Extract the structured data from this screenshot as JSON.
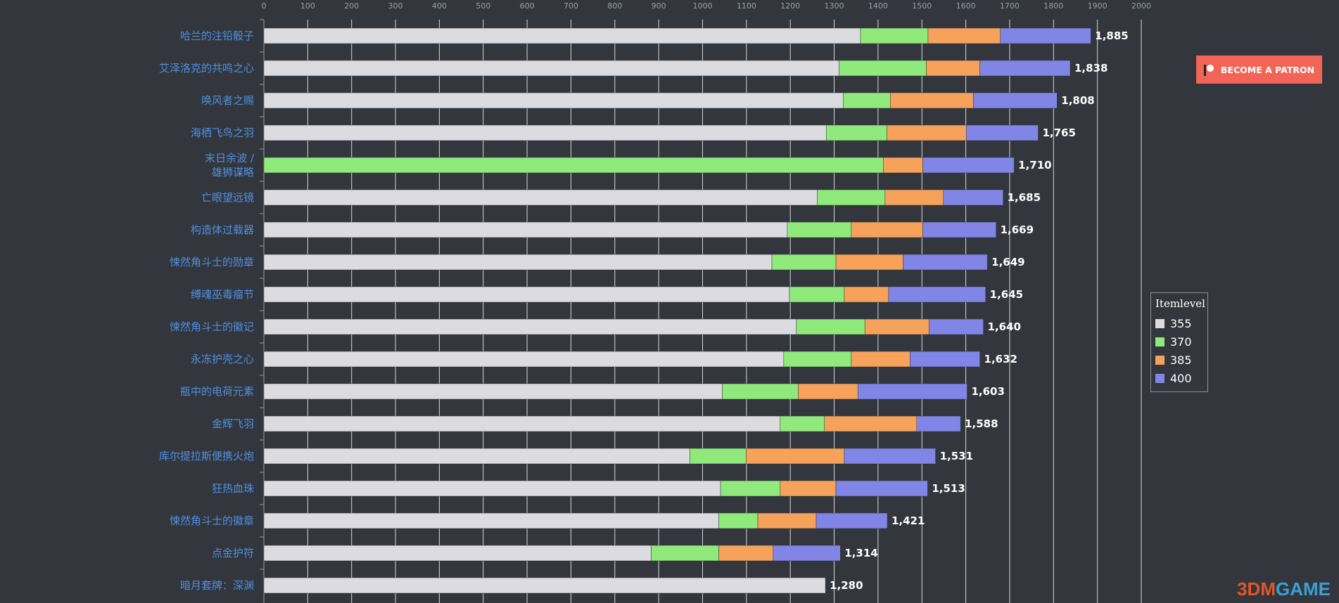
{
  "chart_data": {
    "type": "bar",
    "orientation": "horizontal",
    "stacked": true,
    "title": "",
    "xlabel": "",
    "ylabel": "",
    "xlim": [
      0,
      2000
    ],
    "xticks": [
      "0",
      "100",
      "200",
      "300",
      "400",
      "500",
      "600",
      "700",
      "800",
      "900",
      "1000",
      "1100",
      "1200",
      "1300",
      "1400",
      "1500",
      "1600",
      "1700",
      "1800",
      "1900",
      "2000"
    ],
    "grid": true,
    "legend_title": "Itemlevel",
    "legend_position": "right",
    "categories": [
      "哈兰的注铅骰子",
      "艾泽洛克的共鸣之心",
      "唤风者之赐",
      "海栖飞鸟之羽",
      "末日余波 / 雄狮谋略",
      "亡眼望远镜",
      "构造体过载器",
      "悚然角斗士的勋章",
      "缚魂巫毒瘤节",
      "悚然角斗士的徽记",
      "永冻护壳之心",
      "瓶中的电荷元素",
      "金辉飞羽",
      "库尔提拉斯便携火炮",
      "狂热血珠",
      "悚然角斗士的徽章",
      "点金护符",
      "暗月套牌：深渊"
    ],
    "category_lines": [
      [
        "哈兰的注铅骰子"
      ],
      [
        "艾泽洛克的共鸣之心"
      ],
      [
        "唤风者之赐"
      ],
      [
        "海栖飞鸟之羽"
      ],
      [
        "末日余波 /",
        "雄狮谋略"
      ],
      [
        "亡眼望远镜"
      ],
      [
        "构造体过载器"
      ],
      [
        "悚然角斗士的勋章"
      ],
      [
        "缚魂巫毒瘤节"
      ],
      [
        "悚然角斗士的徽记"
      ],
      [
        "永冻护壳之心"
      ],
      [
        "瓶中的电荷元素"
      ],
      [
        "金辉飞羽"
      ],
      [
        "库尔提拉斯便携火炮"
      ],
      [
        "狂热血珠"
      ],
      [
        "悚然角斗士的徽章"
      ],
      [
        "点金护符"
      ],
      [
        "暗月套牌：深渊"
      ]
    ],
    "series": [
      {
        "name": "355",
        "color": "#dcdbe0",
        "values": [
          1360,
          1311,
          1321,
          1282,
          0,
          1261,
          1193,
          1158,
          1198,
          1214,
          1185,
          1045,
          1177,
          971,
          1041,
          1037,
          883,
          1280
        ]
      },
      {
        "name": "370",
        "color": "#90e97b",
        "values": [
          154,
          199,
          107,
          138,
          1412,
          155,
          146,
          146,
          125,
          156,
          154,
          173,
          101,
          128,
          136,
          89,
          154,
          0
        ]
      },
      {
        "name": "385",
        "color": "#f6a25b",
        "values": [
          165,
          122,
          189,
          181,
          90,
          133,
          163,
          153,
          101,
          146,
          134,
          136,
          210,
          224,
          127,
          133,
          124,
          0
        ]
      },
      {
        "name": "400",
        "color": "#8185e6",
        "values": [
          206,
          206,
          191,
          164,
          208,
          136,
          167,
          192,
          221,
          124,
          159,
          249,
          100,
          208,
          209,
          162,
          153,
          0
        ]
      }
    ],
    "totals": [
      "1,885",
      "1,838",
      "1,808",
      "1,765",
      "1,710",
      "1,685",
      "1,669",
      "1,649",
      "1,645",
      "1,640",
      "1,632",
      "1,603",
      "1,588",
      "1,531",
      "1,513",
      "1,421",
      "1,314",
      "1,280"
    ]
  },
  "patron_button": {
    "label": "BECOME A PATRON"
  },
  "watermark": {
    "part1": "3DM",
    "part2": "GAME"
  }
}
